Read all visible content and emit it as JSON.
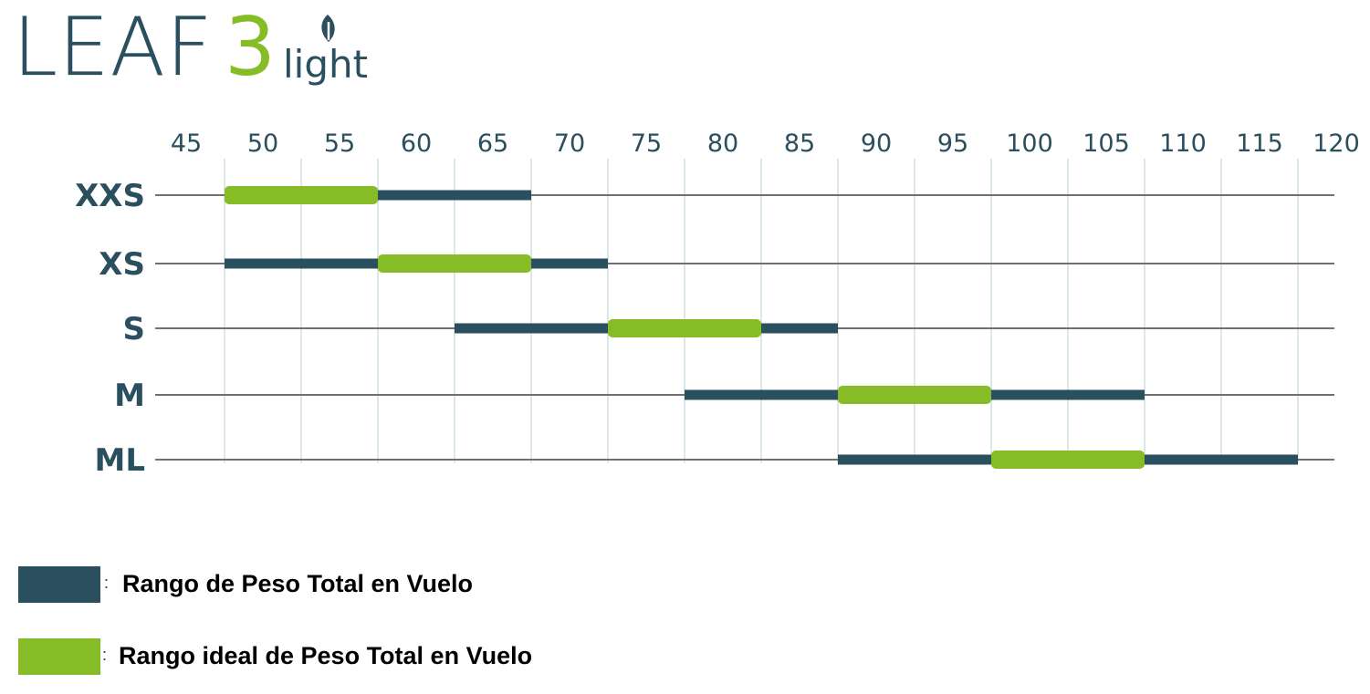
{
  "logo": {
    "word": "LEAF",
    "digit": "3",
    "suffix": "light"
  },
  "colors": {
    "range": "#2a4f5f",
    "ideal": "#86bc25",
    "grid": "#b9cfcf",
    "axis": "#707070"
  },
  "chart_data": {
    "type": "range-bar",
    "title": "",
    "xlabel": "",
    "ylabel": "",
    "xlim": [
      45,
      120
    ],
    "xticks": [
      45,
      50,
      55,
      60,
      65,
      70,
      75,
      80,
      85,
      90,
      95,
      100,
      105,
      110,
      115,
      120
    ],
    "categories": [
      "XXS",
      "XS",
      "S",
      "M",
      "ML"
    ],
    "series": [
      {
        "name": "Rango de Peso Total en Vuelo",
        "color": "#2a4f5f",
        "ranges": [
          [
            47.5,
            67.5
          ],
          [
            47.5,
            72.5
          ],
          [
            62.5,
            87.5
          ],
          [
            77.5,
            107.5
          ],
          [
            87.5,
            117.5
          ]
        ]
      },
      {
        "name": "Rango ideal de Peso Total en Vuelo",
        "color": "#86bc25",
        "ranges": [
          [
            47.5,
            57.5
          ],
          [
            57.5,
            67.5
          ],
          [
            72.5,
            82.5
          ],
          [
            87.5,
            97.5
          ],
          [
            97.5,
            107.5
          ]
        ]
      }
    ]
  },
  "legend": {
    "separator": ":",
    "range_label": "Rango de Peso Total en Vuelo",
    "ideal_label": "Rango ideal de Peso Total en Vuelo"
  }
}
